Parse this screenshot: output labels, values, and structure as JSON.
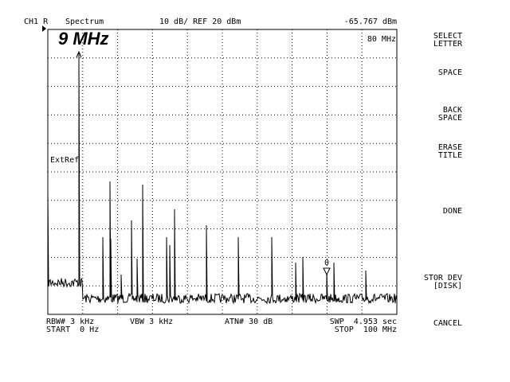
{
  "header": {
    "channel": "CH1 R",
    "mode": "Spectrum",
    "scale": "10 dB/ REF 20 dBm",
    "readout": "-65.767 dBm"
  },
  "title": "9 MHz",
  "marker_frequency": "80 MHz",
  "reference_label": "ExtRef",
  "marker_label": "0",
  "footer": {
    "rbw": "RBW# 3 kHz",
    "vbw": "VBW 3 kHz",
    "atn": "ATN# 30 dB",
    "swp": "SWP  4.953 sec",
    "start": "START  0 Hz",
    "stop": "STOP  100 MHz"
  },
  "softkeys": [
    [
      "SELECT",
      "LETTER"
    ],
    [
      "SPACE"
    ],
    [
      "BACK",
      "SPACE"
    ],
    [
      "ERASE",
      "TITLE"
    ],
    [
      "DONE"
    ],
    [
      "STOR DEV",
      "[DISK]"
    ],
    [
      "CANCEL"
    ]
  ]
}
